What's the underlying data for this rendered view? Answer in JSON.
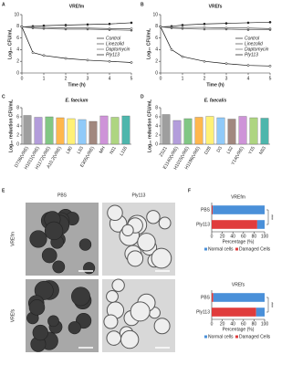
{
  "chart_data": [
    {
      "type": "line",
      "panel": "A",
      "title": "VREfm",
      "xlabel": "Time (h)",
      "ylabel": "Log₁₀ CFU/mL",
      "x": [
        0,
        0.5,
        1,
        2,
        3,
        4,
        5
      ],
      "xlim": [
        0,
        5
      ],
      "xticks": [
        0,
        1,
        2,
        3,
        4,
        5
      ],
      "ylim": [
        0,
        10
      ],
      "yticks": [
        0,
        2,
        4,
        6,
        8,
        10
      ],
      "series": [
        {
          "name": "Control",
          "color": "#222222",
          "values": [
            7.9,
            8.0,
            8.1,
            8.2,
            8.3,
            8.4,
            8.6
          ]
        },
        {
          "name": "Linezolid",
          "color": "#444444",
          "values": [
            7.9,
            7.8,
            7.8,
            7.7,
            7.7,
            7.6,
            7.6
          ]
        },
        {
          "name": "Daptomycin",
          "color": "#666666",
          "values": [
            7.9,
            7.7,
            7.6,
            7.5,
            7.5,
            7.4,
            7.3
          ]
        },
        {
          "name": "Ply113",
          "color": "#111111",
          "values": [
            7.9,
            3.5,
            3.0,
            2.5,
            2.2,
            2.0,
            1.8
          ]
        }
      ]
    },
    {
      "type": "line",
      "panel": "B",
      "title": "VREfs",
      "xlabel": "Time (h)",
      "ylabel": "Log₁₀ CFU/mL",
      "x": [
        0,
        0.5,
        1,
        2,
        3,
        4,
        5
      ],
      "xlim": [
        0,
        5
      ],
      "xticks": [
        0,
        1,
        2,
        3,
        4,
        5
      ],
      "ylim": [
        0,
        10
      ],
      "yticks": [
        0,
        2,
        4,
        6,
        8,
        10
      ],
      "series": [
        {
          "name": "Control",
          "color": "#222222",
          "values": [
            7.9,
            8.0,
            8.2,
            8.4,
            8.5,
            8.6,
            8.7
          ]
        },
        {
          "name": "Linezolid",
          "color": "#444444",
          "values": [
            7.9,
            7.8,
            7.8,
            7.8,
            7.7,
            7.7,
            7.6
          ]
        },
        {
          "name": "Daptomycin",
          "color": "#666666",
          "values": [
            7.9,
            7.7,
            7.6,
            7.5,
            7.5,
            7.4,
            7.4
          ]
        },
        {
          "name": "Ply113",
          "color": "#111111",
          "values": [
            7.9,
            4.0,
            2.8,
            2.0,
            1.6,
            1.3,
            1.2
          ]
        }
      ]
    },
    {
      "type": "bar",
      "panel": "C",
      "title": "E. faecium",
      "ylabel": "Log₁₀ reduction CFU/mL",
      "categories": [
        "D736(VRE)",
        "H1011(VRE)",
        "H1172(VRE)",
        "A10.2(VRE)",
        "L90",
        "L53",
        "E305(VRE)",
        "MH",
        "N11",
        "L116"
      ],
      "values": [
        6.3,
        5.9,
        6.0,
        5.8,
        5.6,
        5.4,
        5.0,
        6.2,
        5.9,
        6.2
      ],
      "colors": [
        "#9e9e9e",
        "#b39ddb",
        "#81c784",
        "#ffb74d",
        "#fff176",
        "#90caf9",
        "#a1887f",
        "#ce93d8",
        "#aed581",
        "#4db6ac"
      ],
      "ylim": [
        0,
        8
      ],
      "yticks": [
        0,
        2,
        4,
        6,
        8
      ]
    },
    {
      "type": "bar",
      "panel": "D",
      "title": "E. faecalis",
      "ylabel": "Log₁₀ reduction CFU/mL",
      "categories": [
        "ZS21",
        "E1140(VRE)",
        "H1015(VRE)",
        "H1196(VRE)",
        "D28",
        "D3",
        "L52",
        "Y14(VRE)",
        "Y15",
        "N53"
      ],
      "values": [
        6.5,
        5.2,
        5.6,
        5.9,
        6.1,
        5.8,
        5.5,
        6.1,
        5.8,
        5.7
      ],
      "colors": [
        "#9e9e9e",
        "#b39ddb",
        "#81c784",
        "#ffb74d",
        "#fff176",
        "#90caf9",
        "#a1887f",
        "#ce93d8",
        "#aed581",
        "#4db6ac"
      ],
      "ylim": [
        0,
        8
      ],
      "yticks": [
        0,
        2,
        4,
        6,
        8
      ]
    },
    {
      "type": "hbar_stacked",
      "panel": "F",
      "title": "VREfm",
      "xlabel": "Percentage (%)",
      "annotation": "***",
      "categories": [
        "PBS",
        "Ply113"
      ],
      "xlim": [
        0,
        100
      ],
      "xticks": [
        0,
        20,
        40,
        60,
        80,
        100
      ],
      "series": [
        {
          "name": "Normal cells",
          "color": "#4a90d9",
          "values": [
            98,
            14
          ]
        },
        {
          "name": "Damaged Cells",
          "color": "#e03c3c",
          "values": [
            2,
            86
          ]
        }
      ]
    },
    {
      "type": "hbar_stacked",
      "title": "VREfs",
      "xlabel": "Percentage (%)",
      "annotation": "***",
      "categories": [
        "PBS",
        "Ply113"
      ],
      "xlim": [
        0,
        100
      ],
      "xticks": [
        0,
        20,
        40,
        60,
        80,
        100
      ],
      "series": [
        {
          "name": "Normal cells",
          "color": "#4a90d9",
          "values": [
            97,
            16
          ]
        },
        {
          "name": "Damaged Cells",
          "color": "#e03c3c",
          "values": [
            3,
            84
          ]
        }
      ]
    }
  ],
  "images": {
    "panel": "E",
    "columns": [
      "PBS",
      "Ply113"
    ],
    "rows": [
      "VREfm",
      "VREfs"
    ]
  }
}
